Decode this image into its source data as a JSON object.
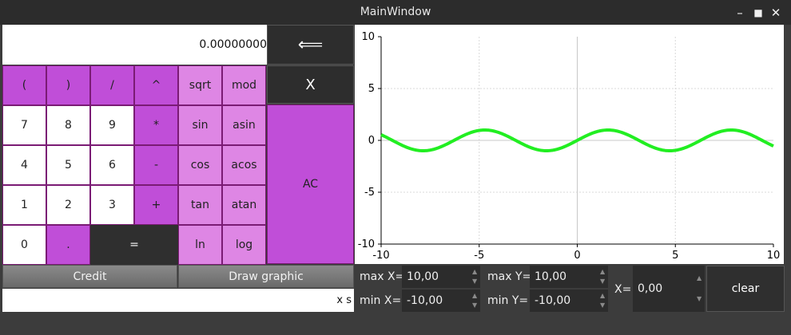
{
  "window": {
    "title": "MainWindow",
    "minimize": "–",
    "maximize": "■",
    "close": "✕"
  },
  "display": {
    "value": "0.00000000"
  },
  "backspace": {
    "label": "⟸"
  },
  "xkey": {
    "label": "X"
  },
  "ac": {
    "label": "AC"
  },
  "keys": {
    "lparen": "(",
    "rparen": ")",
    "div": "/",
    "pow": "^",
    "sqrt": "sqrt",
    "mod": "mod",
    "n7": "7",
    "n8": "8",
    "n9": "9",
    "mul": "*",
    "sin": "sin",
    "asin": "asin",
    "n4": "4",
    "n5": "5",
    "n6": "6",
    "minus": "-",
    "cos": "cos",
    "acos": "acos",
    "n1": "1",
    "n2": "2",
    "n3": "3",
    "plus": "+",
    "tan": "tan",
    "atan": "atan",
    "n0": "0",
    "dot": ".",
    "eq": "=",
    "ln": "ln",
    "log": "log"
  },
  "buttons": {
    "credit": "Credit",
    "draw": "Draw graphic",
    "clear": "clear"
  },
  "xs_field": {
    "value": "x s"
  },
  "ranges": {
    "max_x_label": "max X=",
    "max_x": "10,00",
    "min_x_label": "min X=",
    "min_x": "-10,00",
    "max_y_label": "max Y=",
    "max_y": "10,00",
    "min_y_label": "min Y=",
    "min_y": "-10,00",
    "x_label": "X=",
    "x_value": "0,00"
  },
  "chart_data": {
    "type": "line",
    "xlim": [
      -10,
      10
    ],
    "ylim": [
      -10,
      10
    ],
    "xticks": [
      "-10",
      "-5",
      "0",
      "5",
      "10"
    ],
    "yticks": [
      "10",
      "5",
      "0",
      "-5",
      "-10"
    ],
    "grid": true,
    "series": [
      {
        "function": "sin",
        "color": "#22ee22",
        "x": [
          -10,
          -9,
          -8,
          -7,
          -6,
          -5,
          -4,
          -3,
          -2,
          -1,
          0,
          1,
          2,
          3,
          4,
          5,
          6,
          7,
          8,
          9,
          10
        ],
        "y": [
          0.54,
          -0.41,
          -0.99,
          -0.66,
          0.28,
          0.96,
          0.76,
          -0.14,
          -0.91,
          -0.84,
          0,
          0.84,
          0.91,
          0.14,
          -0.76,
          -0.96,
          -0.28,
          0.66,
          0.99,
          0.41,
          -0.54
        ]
      }
    ]
  }
}
